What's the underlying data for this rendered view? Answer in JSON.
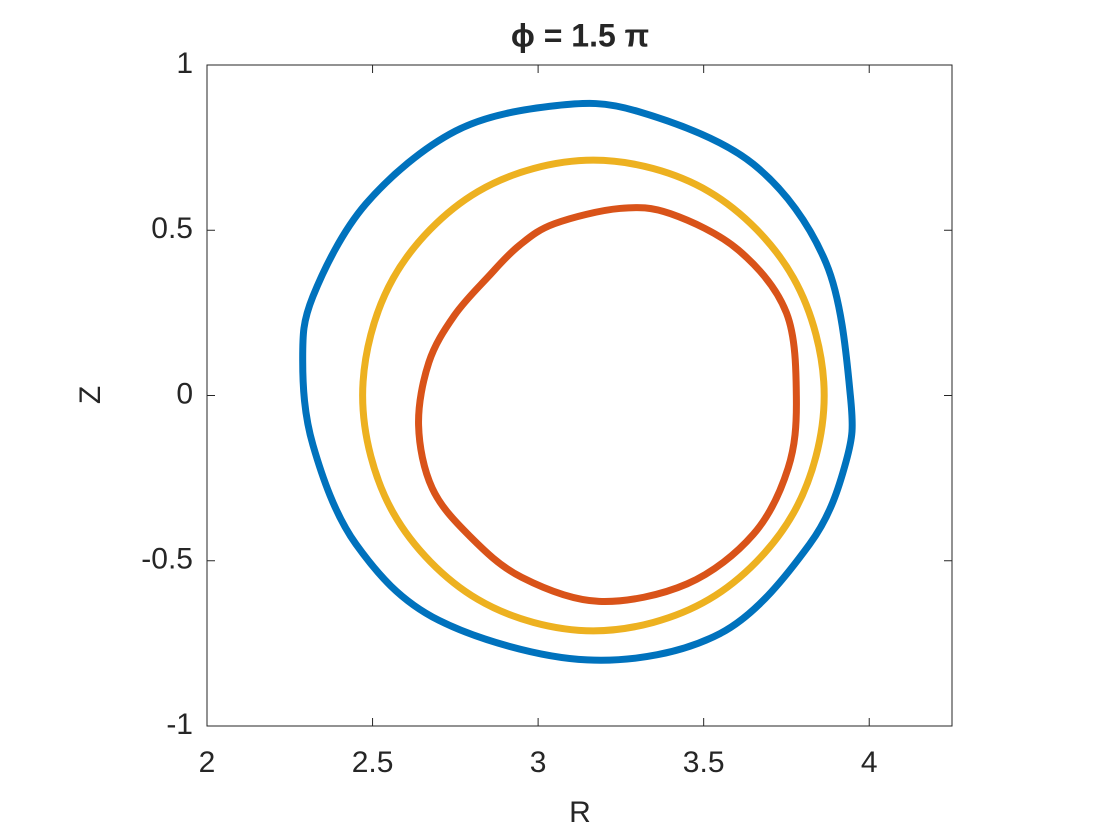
{
  "chart_data": {
    "type": "line",
    "title": "ϕ = 1.5 π",
    "xlabel": "R",
    "ylabel": "Z",
    "xlim": [
      2,
      4.25
    ],
    "ylim": [
      -1,
      1
    ],
    "xticks": [
      2,
      2.5,
      3,
      3.5,
      4
    ],
    "yticks": [
      -1,
      -0.5,
      0,
      0.5,
      1
    ],
    "grid": false,
    "box": true,
    "smooth": true,
    "line_width": 7,
    "series": [
      {
        "color": "#0072BD",
        "x": [
          3.943,
          3.87,
          3.65,
          3.3,
          3.054,
          2.75,
          2.48,
          2.32,
          2.289,
          2.32,
          2.45,
          2.7,
          3.148,
          3.55,
          3.82,
          3.93,
          3.943
        ],
        "values": [
          0.0,
          0.4,
          0.7,
          0.86,
          0.877,
          0.8,
          0.58,
          0.3,
          0.106,
          -0.15,
          -0.45,
          -0.68,
          -0.8,
          -0.72,
          -0.45,
          -0.2,
          0.0
        ]
      },
      {
        "color": "#D95319",
        "x": [
          3.78,
          3.75,
          3.605,
          3.4,
          3.247,
          3.05,
          2.943,
          2.85,
          2.747,
          2.67,
          2.639,
          2.68,
          2.792,
          2.95,
          3.184,
          3.45,
          3.65,
          3.755,
          3.78
        ],
        "values": [
          -0.01,
          0.25,
          0.44,
          0.55,
          0.566,
          0.52,
          0.454,
          0.36,
          0.242,
          0.1,
          -0.09,
          -0.28,
          -0.424,
          -0.55,
          -0.623,
          -0.57,
          -0.42,
          -0.22,
          -0.01
        ]
      },
      {
        "color": "#EDB120",
        "x": [
          3.864,
          3.771,
          3.516,
          3.167,
          2.818,
          2.563,
          2.47,
          2.563,
          2.818,
          3.167,
          3.516,
          3.771,
          3.864
        ],
        "values": [
          0,
          0.356,
          0.617,
          0.712,
          0.617,
          0.356,
          0,
          -0.356,
          -0.617,
          -0.712,
          -0.617,
          -0.356,
          0
        ]
      }
    ]
  }
}
